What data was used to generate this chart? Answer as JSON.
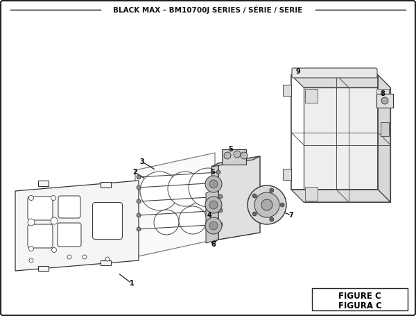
{
  "title": "BLACK MAX – BM10700J SERIES / SÉRIE / SERIE",
  "figure_label": "FIGURE C",
  "figura_label": "FIGURA C",
  "bg_color": "#ffffff",
  "border_color": "#222222",
  "text_color": "#111111",
  "title_fontsize": 7.5,
  "label_fontsize": 7.0,
  "fig_label_fontsize": 8.5
}
